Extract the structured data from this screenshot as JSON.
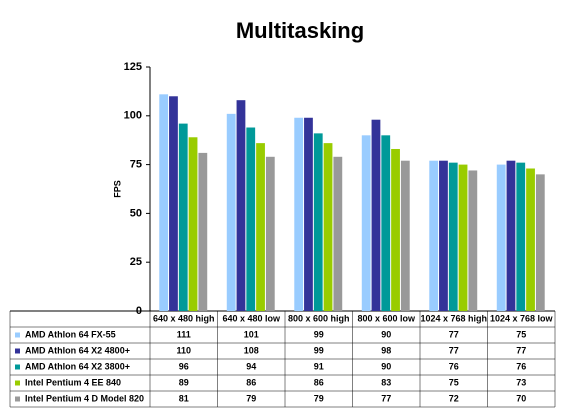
{
  "chart_data": {
    "type": "bar",
    "title": "Multitasking",
    "y_label": "FPS",
    "categories": [
      "640 x 480 high",
      "640 x 480 low",
      "800 x 600 high",
      "800 x 600 low",
      "1024 x 768 high",
      "1024 x 768 low"
    ],
    "series": [
      {
        "name": "AMD Athlon 64 FX-55",
        "color": "#99ccff",
        "values": [
          111,
          101,
          99,
          90,
          77,
          75
        ]
      },
      {
        "name": "AMD Athlon 64 X2 4800+",
        "color": "#333399",
        "values": [
          110,
          108,
          99,
          98,
          77,
          77
        ]
      },
      {
        "name": "AMD Athlon 64 X2 3800+",
        "color": "#009999",
        "values": [
          96,
          94,
          91,
          90,
          76,
          76
        ]
      },
      {
        "name": "Intel Pentium 4 EE 840",
        "color": "#99cc00",
        "values": [
          89,
          86,
          86,
          83,
          75,
          73
        ]
      },
      {
        "name": "Intel Pentium 4 D Model 820",
        "color": "#999999",
        "values": [
          81,
          79,
          79,
          77,
          72,
          70
        ]
      }
    ],
    "ylim": [
      0,
      125
    ],
    "yticks": [
      0,
      25,
      50,
      75,
      100,
      125
    ],
    "grid": false
  }
}
